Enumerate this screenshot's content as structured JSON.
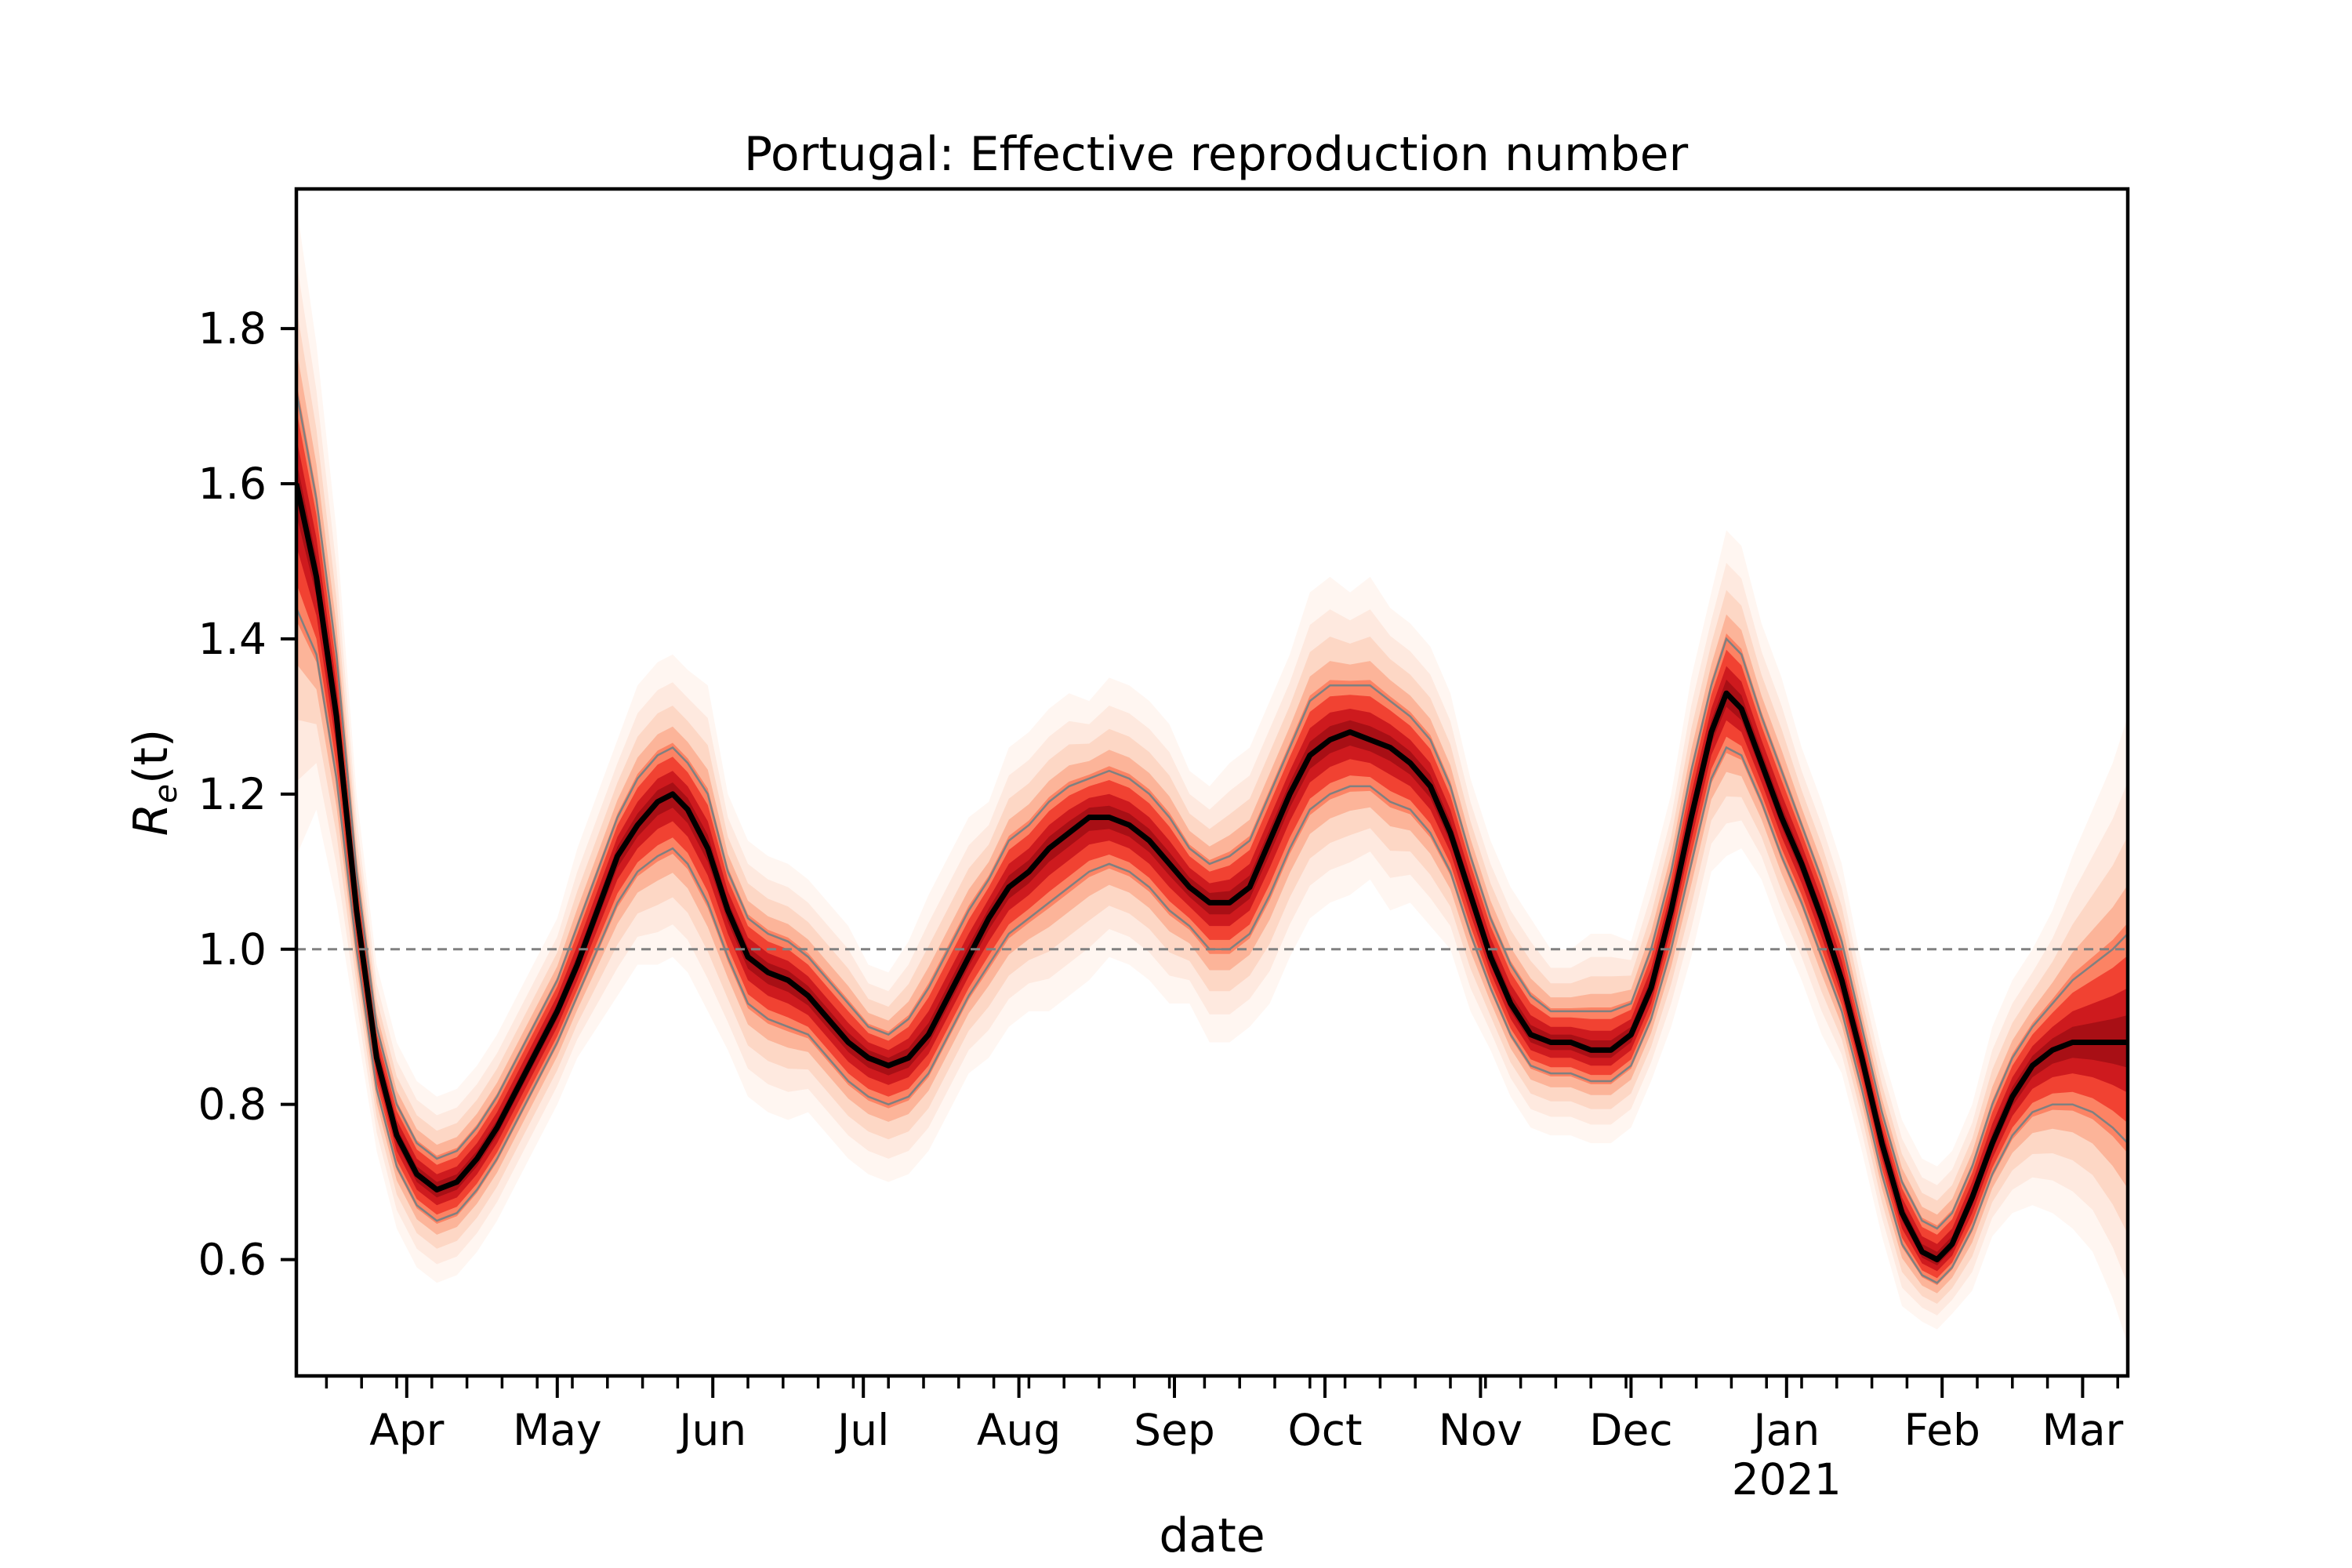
{
  "chart_data": {
    "type": "line",
    "title": "Portugal: Effective reproduction number",
    "xlabel": "date",
    "ylabel_base": "R",
    "ylabel_sub": "e",
    "ylabel_arg": "(t)",
    "ylim": [
      0.45,
      1.98
    ],
    "yticks": [
      0.6,
      0.8,
      1.0,
      1.2,
      1.4,
      1.6,
      1.8
    ],
    "ytick_labels": [
      "0.6",
      "0.8",
      "1.0",
      "1.2",
      "1.4",
      "1.6",
      "1.8"
    ],
    "xlim": [
      "2020-03-10",
      "2021-03-10"
    ],
    "xticks": [
      "2020-04-01",
      "2020-05-01",
      "2020-06-01",
      "2020-07-01",
      "2020-08-01",
      "2020-09-01",
      "2020-10-01",
      "2020-11-01",
      "2020-12-01",
      "2021-01-01",
      "2021-02-01",
      "2021-03-01"
    ],
    "xtick_labels": [
      "Apr",
      "May",
      "Jun",
      "Jul",
      "Aug",
      "Sep",
      "Oct",
      "Nov",
      "Dec",
      "Jan",
      "Feb",
      "Mar"
    ],
    "year_label": "2021",
    "reference_line": 1.0,
    "grid": false,
    "colors": {
      "line": "#000000",
      "band_dark": "#cb181d",
      "band_light": "#fee0d2",
      "reference": "#808080",
      "interval": "#808080"
    },
    "series": [
      {
        "x": [
          "2020-03-10",
          "2020-03-14",
          "2020-03-18",
          "2020-03-22",
          "2020-03-26",
          "2020-03-30",
          "2020-04-03",
          "2020-04-07",
          "2020-04-11",
          "2020-04-15",
          "2020-04-19",
          "2020-04-23",
          "2020-04-27",
          "2020-05-01",
          "2020-05-05",
          "2020-05-09",
          "2020-05-13",
          "2020-05-17",
          "2020-05-21",
          "2020-05-24",
          "2020-05-27",
          "2020-05-31",
          "2020-06-04",
          "2020-06-08",
          "2020-06-12",
          "2020-06-16",
          "2020-06-20",
          "2020-06-24",
          "2020-06-28",
          "2020-07-02",
          "2020-07-06",
          "2020-07-10",
          "2020-07-14",
          "2020-07-18",
          "2020-07-22",
          "2020-07-26",
          "2020-07-30",
          "2020-08-03",
          "2020-08-07",
          "2020-08-11",
          "2020-08-15",
          "2020-08-19",
          "2020-08-23",
          "2020-08-27",
          "2020-08-31",
          "2020-09-04",
          "2020-09-08",
          "2020-09-12",
          "2020-09-16",
          "2020-09-20",
          "2020-09-24",
          "2020-09-28",
          "2020-10-02",
          "2020-10-06",
          "2020-10-10",
          "2020-10-14",
          "2020-10-18",
          "2020-10-22",
          "2020-10-26",
          "2020-10-30",
          "2020-11-03",
          "2020-11-07",
          "2020-11-11",
          "2020-11-15",
          "2020-11-19",
          "2020-11-23",
          "2020-11-27",
          "2020-12-01",
          "2020-12-05",
          "2020-12-09",
          "2020-12-13",
          "2020-12-17",
          "2020-12-20",
          "2020-12-23",
          "2020-12-27",
          "2020-12-31",
          "2021-01-04",
          "2021-01-08",
          "2021-01-12",
          "2021-01-16",
          "2021-01-20",
          "2021-01-24",
          "2021-01-28",
          "2021-01-31",
          "2021-02-03",
          "2021-02-07",
          "2021-02-11",
          "2021-02-15",
          "2021-02-19",
          "2021-02-23",
          "2021-02-27",
          "2021-03-03",
          "2021-03-07",
          "2021-03-10"
        ],
        "y": [
          1.6,
          1.48,
          1.3,
          1.05,
          0.86,
          0.76,
          0.71,
          0.69,
          0.7,
          0.73,
          0.77,
          0.82,
          0.87,
          0.92,
          0.98,
          1.05,
          1.12,
          1.16,
          1.19,
          1.2,
          1.18,
          1.13,
          1.05,
          0.99,
          0.97,
          0.96,
          0.94,
          0.91,
          0.88,
          0.86,
          0.85,
          0.86,
          0.89,
          0.94,
          0.99,
          1.04,
          1.08,
          1.1,
          1.13,
          1.15,
          1.17,
          1.17,
          1.16,
          1.14,
          1.11,
          1.08,
          1.06,
          1.06,
          1.08,
          1.14,
          1.2,
          1.25,
          1.27,
          1.28,
          1.27,
          1.26,
          1.24,
          1.21,
          1.15,
          1.07,
          0.99,
          0.93,
          0.89,
          0.88,
          0.88,
          0.87,
          0.87,
          0.89,
          0.95,
          1.05,
          1.17,
          1.28,
          1.33,
          1.31,
          1.24,
          1.17,
          1.11,
          1.04,
          0.96,
          0.86,
          0.75,
          0.66,
          0.61,
          0.6,
          0.62,
          0.68,
          0.75,
          0.81,
          0.85,
          0.87,
          0.88,
          0.88,
          0.88,
          0.88
        ],
        "lower": [
          1.44,
          1.38,
          1.22,
          1.0,
          0.82,
          0.72,
          0.67,
          0.65,
          0.66,
          0.69,
          0.73,
          0.78,
          0.83,
          0.88,
          0.94,
          1.0,
          1.06,
          1.1,
          1.12,
          1.13,
          1.11,
          1.06,
          0.99,
          0.93,
          0.91,
          0.9,
          0.89,
          0.86,
          0.83,
          0.81,
          0.8,
          0.81,
          0.84,
          0.89,
          0.94,
          0.98,
          1.02,
          1.04,
          1.06,
          1.08,
          1.1,
          1.11,
          1.1,
          1.08,
          1.05,
          1.03,
          1.0,
          1.0,
          1.02,
          1.07,
          1.13,
          1.18,
          1.2,
          1.21,
          1.21,
          1.19,
          1.18,
          1.15,
          1.1,
          1.02,
          0.95,
          0.89,
          0.85,
          0.84,
          0.84,
          0.83,
          0.83,
          0.85,
          0.91,
          1.0,
          1.11,
          1.22,
          1.26,
          1.25,
          1.19,
          1.12,
          1.06,
          0.99,
          0.92,
          0.82,
          0.71,
          0.62,
          0.58,
          0.57,
          0.59,
          0.64,
          0.71,
          0.76,
          0.79,
          0.8,
          0.8,
          0.79,
          0.77,
          0.75
        ],
        "upper": [
          1.72,
          1.58,
          1.38,
          1.1,
          0.9,
          0.8,
          0.75,
          0.73,
          0.74,
          0.77,
          0.81,
          0.86,
          0.91,
          0.96,
          1.03,
          1.1,
          1.17,
          1.22,
          1.25,
          1.26,
          1.24,
          1.2,
          1.1,
          1.04,
          1.02,
          1.01,
          0.99,
          0.96,
          0.93,
          0.9,
          0.89,
          0.91,
          0.95,
          1.0,
          1.05,
          1.09,
          1.14,
          1.16,
          1.19,
          1.21,
          1.22,
          1.23,
          1.22,
          1.2,
          1.17,
          1.13,
          1.11,
          1.12,
          1.14,
          1.2,
          1.26,
          1.32,
          1.34,
          1.34,
          1.34,
          1.32,
          1.3,
          1.27,
          1.21,
          1.12,
          1.04,
          0.98,
          0.94,
          0.92,
          0.92,
          0.92,
          0.92,
          0.93,
          1.0,
          1.1,
          1.23,
          1.34,
          1.4,
          1.38,
          1.3,
          1.23,
          1.16,
          1.09,
          1.01,
          0.9,
          0.79,
          0.7,
          0.65,
          0.64,
          0.66,
          0.72,
          0.8,
          0.86,
          0.9,
          0.93,
          0.96,
          0.98,
          1.0,
          1.02
        ]
      }
    ]
  }
}
